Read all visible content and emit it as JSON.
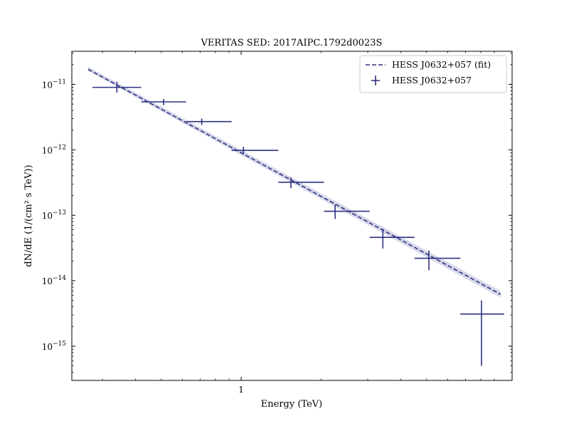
{
  "chart_data": {
    "type": "scatter",
    "title": "VERITAS SED: 2017AIPC.1792d0023S",
    "xlabel": "Energy (TeV)",
    "ylabel": "dN/dE (1/(cm² s TeV))",
    "xscale": "log",
    "yscale": "log",
    "xlim": [
      0.23,
      10.5
    ],
    "ylim": [
      3e-16,
      3.2e-11
    ],
    "x_tick_labels": [
      {
        "value": 1,
        "label": "1"
      }
    ],
    "y_tick_labels": [
      {
        "value": 1e-11,
        "base": "10",
        "exp": "−11"
      },
      {
        "value": 1e-12,
        "base": "10",
        "exp": "−12"
      },
      {
        "value": 1e-13,
        "base": "10",
        "exp": "−13"
      },
      {
        "value": 1e-14,
        "base": "10",
        "exp": "−14"
      },
      {
        "value": 1e-15,
        "base": "10",
        "exp": "−15"
      }
    ],
    "grid": false,
    "legend_position": "top-right",
    "colors": {
      "series": "#2e3282",
      "band": "#c9cbe3"
    },
    "series": [
      {
        "name": "HESS J0632+057 (fit)",
        "kind": "fit-line",
        "style": "dashed",
        "x": [
          0.265,
          9.5
        ],
        "y": [
          1.7e-11,
          6.2e-15
        ],
        "band_y_low": [
          1.6e-11,
          5.5e-15
        ],
        "band_y_high": [
          1.85e-11,
          7e-15
        ]
      },
      {
        "name": "HESS J0632+057",
        "kind": "errorbar",
        "points": [
          {
            "x": 0.34,
            "x_low": 0.275,
            "x_high": 0.42,
            "y": 9e-12,
            "y_low": 7.5e-12,
            "y_high": 1.1e-11
          },
          {
            "x": 0.51,
            "x_low": 0.42,
            "x_high": 0.62,
            "y": 5.4e-12,
            "y_low": 4.8e-12,
            "y_high": 6e-12
          },
          {
            "x": 0.71,
            "x_low": 0.62,
            "x_high": 0.92,
            "y": 2.7e-12,
            "y_low": 2.4e-12,
            "y_high": 3e-12
          },
          {
            "x": 1.02,
            "x_low": 0.92,
            "x_high": 1.38,
            "y": 9.8e-13,
            "y_low": 8.6e-13,
            "y_high": 1.12e-12
          },
          {
            "x": 1.54,
            "x_low": 1.38,
            "x_high": 2.05,
            "y": 3.2e-13,
            "y_low": 2.6e-13,
            "y_high": 3.8e-13
          },
          {
            "x": 2.26,
            "x_low": 2.05,
            "x_high": 3.05,
            "y": 1.15e-13,
            "y_low": 8.8e-14,
            "y_high": 1.45e-13
          },
          {
            "x": 3.42,
            "x_low": 3.05,
            "x_high": 4.5,
            "y": 4.6e-14,
            "y_low": 3.1e-14,
            "y_high": 6.2e-14
          },
          {
            "x": 5.1,
            "x_low": 4.5,
            "x_high": 6.7,
            "y": 2.2e-14,
            "y_low": 1.45e-14,
            "y_high": 2.9e-14
          },
          {
            "x": 8.05,
            "x_low": 6.7,
            "x_high": 9.8,
            "y": 3.1e-15,
            "y_low": 5e-16,
            "y_high": 5e-15
          }
        ]
      }
    ]
  }
}
